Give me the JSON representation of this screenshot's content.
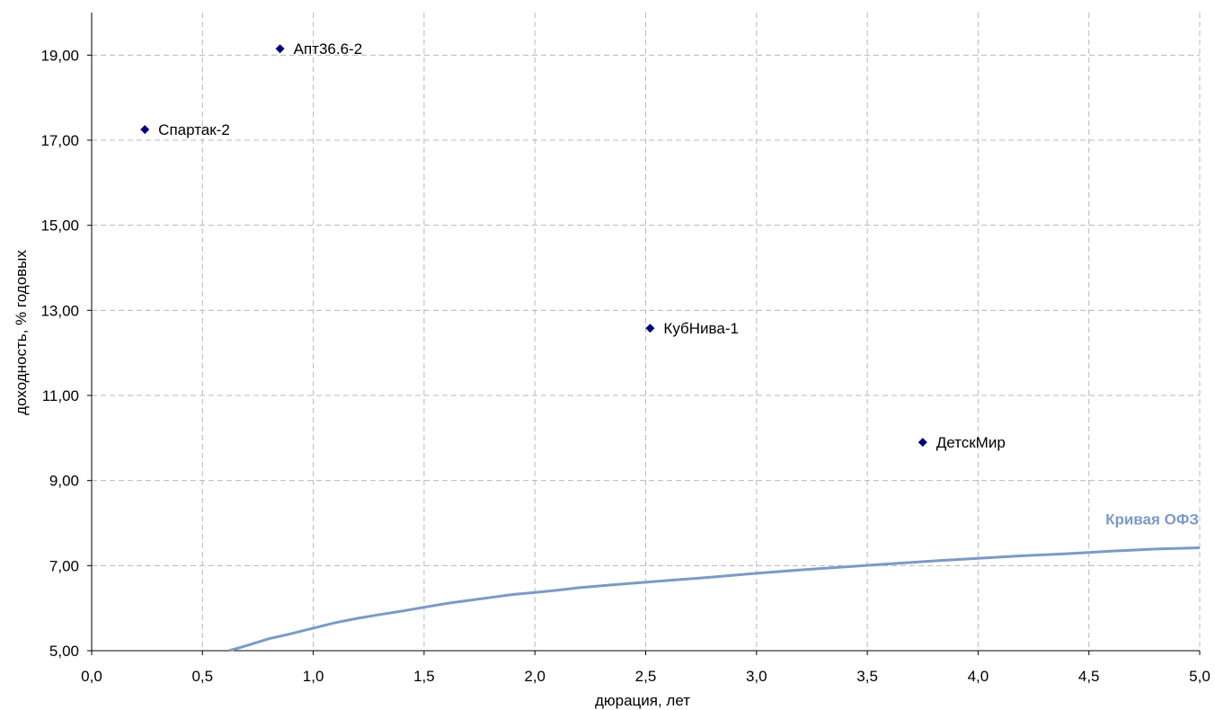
{
  "chart_data": {
    "type": "scatter",
    "xlabel": "дюрация, лет",
    "ylabel": "доходность, % годовых",
    "xlim": [
      0,
      5
    ],
    "ylim": [
      5,
      20
    ],
    "grid": true,
    "x_ticks": [
      "0,0",
      "0,5",
      "1,0",
      "1,5",
      "2,0",
      "2,5",
      "3,0",
      "3,5",
      "4,0",
      "4,5",
      "5,0"
    ],
    "y_ticks": [
      "5,00",
      "7,00",
      "9,00",
      "11,00",
      "13,00",
      "15,00",
      "17,00",
      "19,00"
    ],
    "point_color": "#00007f",
    "curve_color": "#7b9ac6",
    "points": [
      {
        "label": "Спартак-2",
        "x": 0.24,
        "y": 17.25
      },
      {
        "label": "Апт36.6-2",
        "x": 0.85,
        "y": 19.15
      },
      {
        "label": "КубНива-1",
        "x": 2.52,
        "y": 12.58
      },
      {
        "label": "ДетскМир",
        "x": 3.75,
        "y": 9.9
      }
    ],
    "curve": {
      "name": "Кривая ОФЗ",
      "x": [
        0.62,
        0.7,
        0.8,
        0.9,
        1.0,
        1.1,
        1.2,
        1.3,
        1.4,
        1.5,
        1.6,
        1.7,
        1.8,
        1.9,
        2.0,
        2.1,
        2.2,
        2.4,
        2.6,
        2.8,
        3.0,
        3.2,
        3.4,
        3.6,
        3.8,
        4.0,
        4.2,
        4.4,
        4.6,
        4.8,
        5.0
      ],
      "y": [
        5.0,
        5.12,
        5.28,
        5.4,
        5.53,
        5.66,
        5.76,
        5.85,
        5.93,
        6.02,
        6.11,
        6.18,
        6.25,
        6.32,
        6.37,
        6.42,
        6.48,
        6.57,
        6.65,
        6.73,
        6.82,
        6.9,
        6.97,
        7.04,
        7.11,
        7.17,
        7.23,
        7.28,
        7.34,
        7.39,
        7.42
      ]
    }
  }
}
